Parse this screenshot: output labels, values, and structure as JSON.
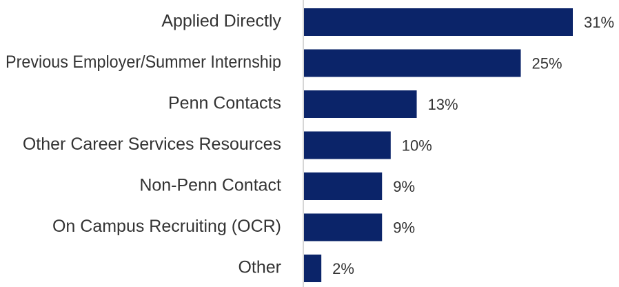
{
  "chart_data": {
    "type": "bar",
    "orientation": "horizontal",
    "categories": [
      "Applied Directly",
      "Previous Employer/Summer Internship",
      "Penn Contacts",
      "Other Career Services Resources",
      "Non-Penn Contact",
      "On Campus Recruiting (OCR)",
      "Other"
    ],
    "values": [
      31,
      25,
      13,
      10,
      9,
      9,
      2
    ],
    "value_labels": [
      "31%",
      "25%",
      "13%",
      "10%",
      "9%",
      "9%",
      "2%"
    ],
    "color": "#0b2469"
  }
}
